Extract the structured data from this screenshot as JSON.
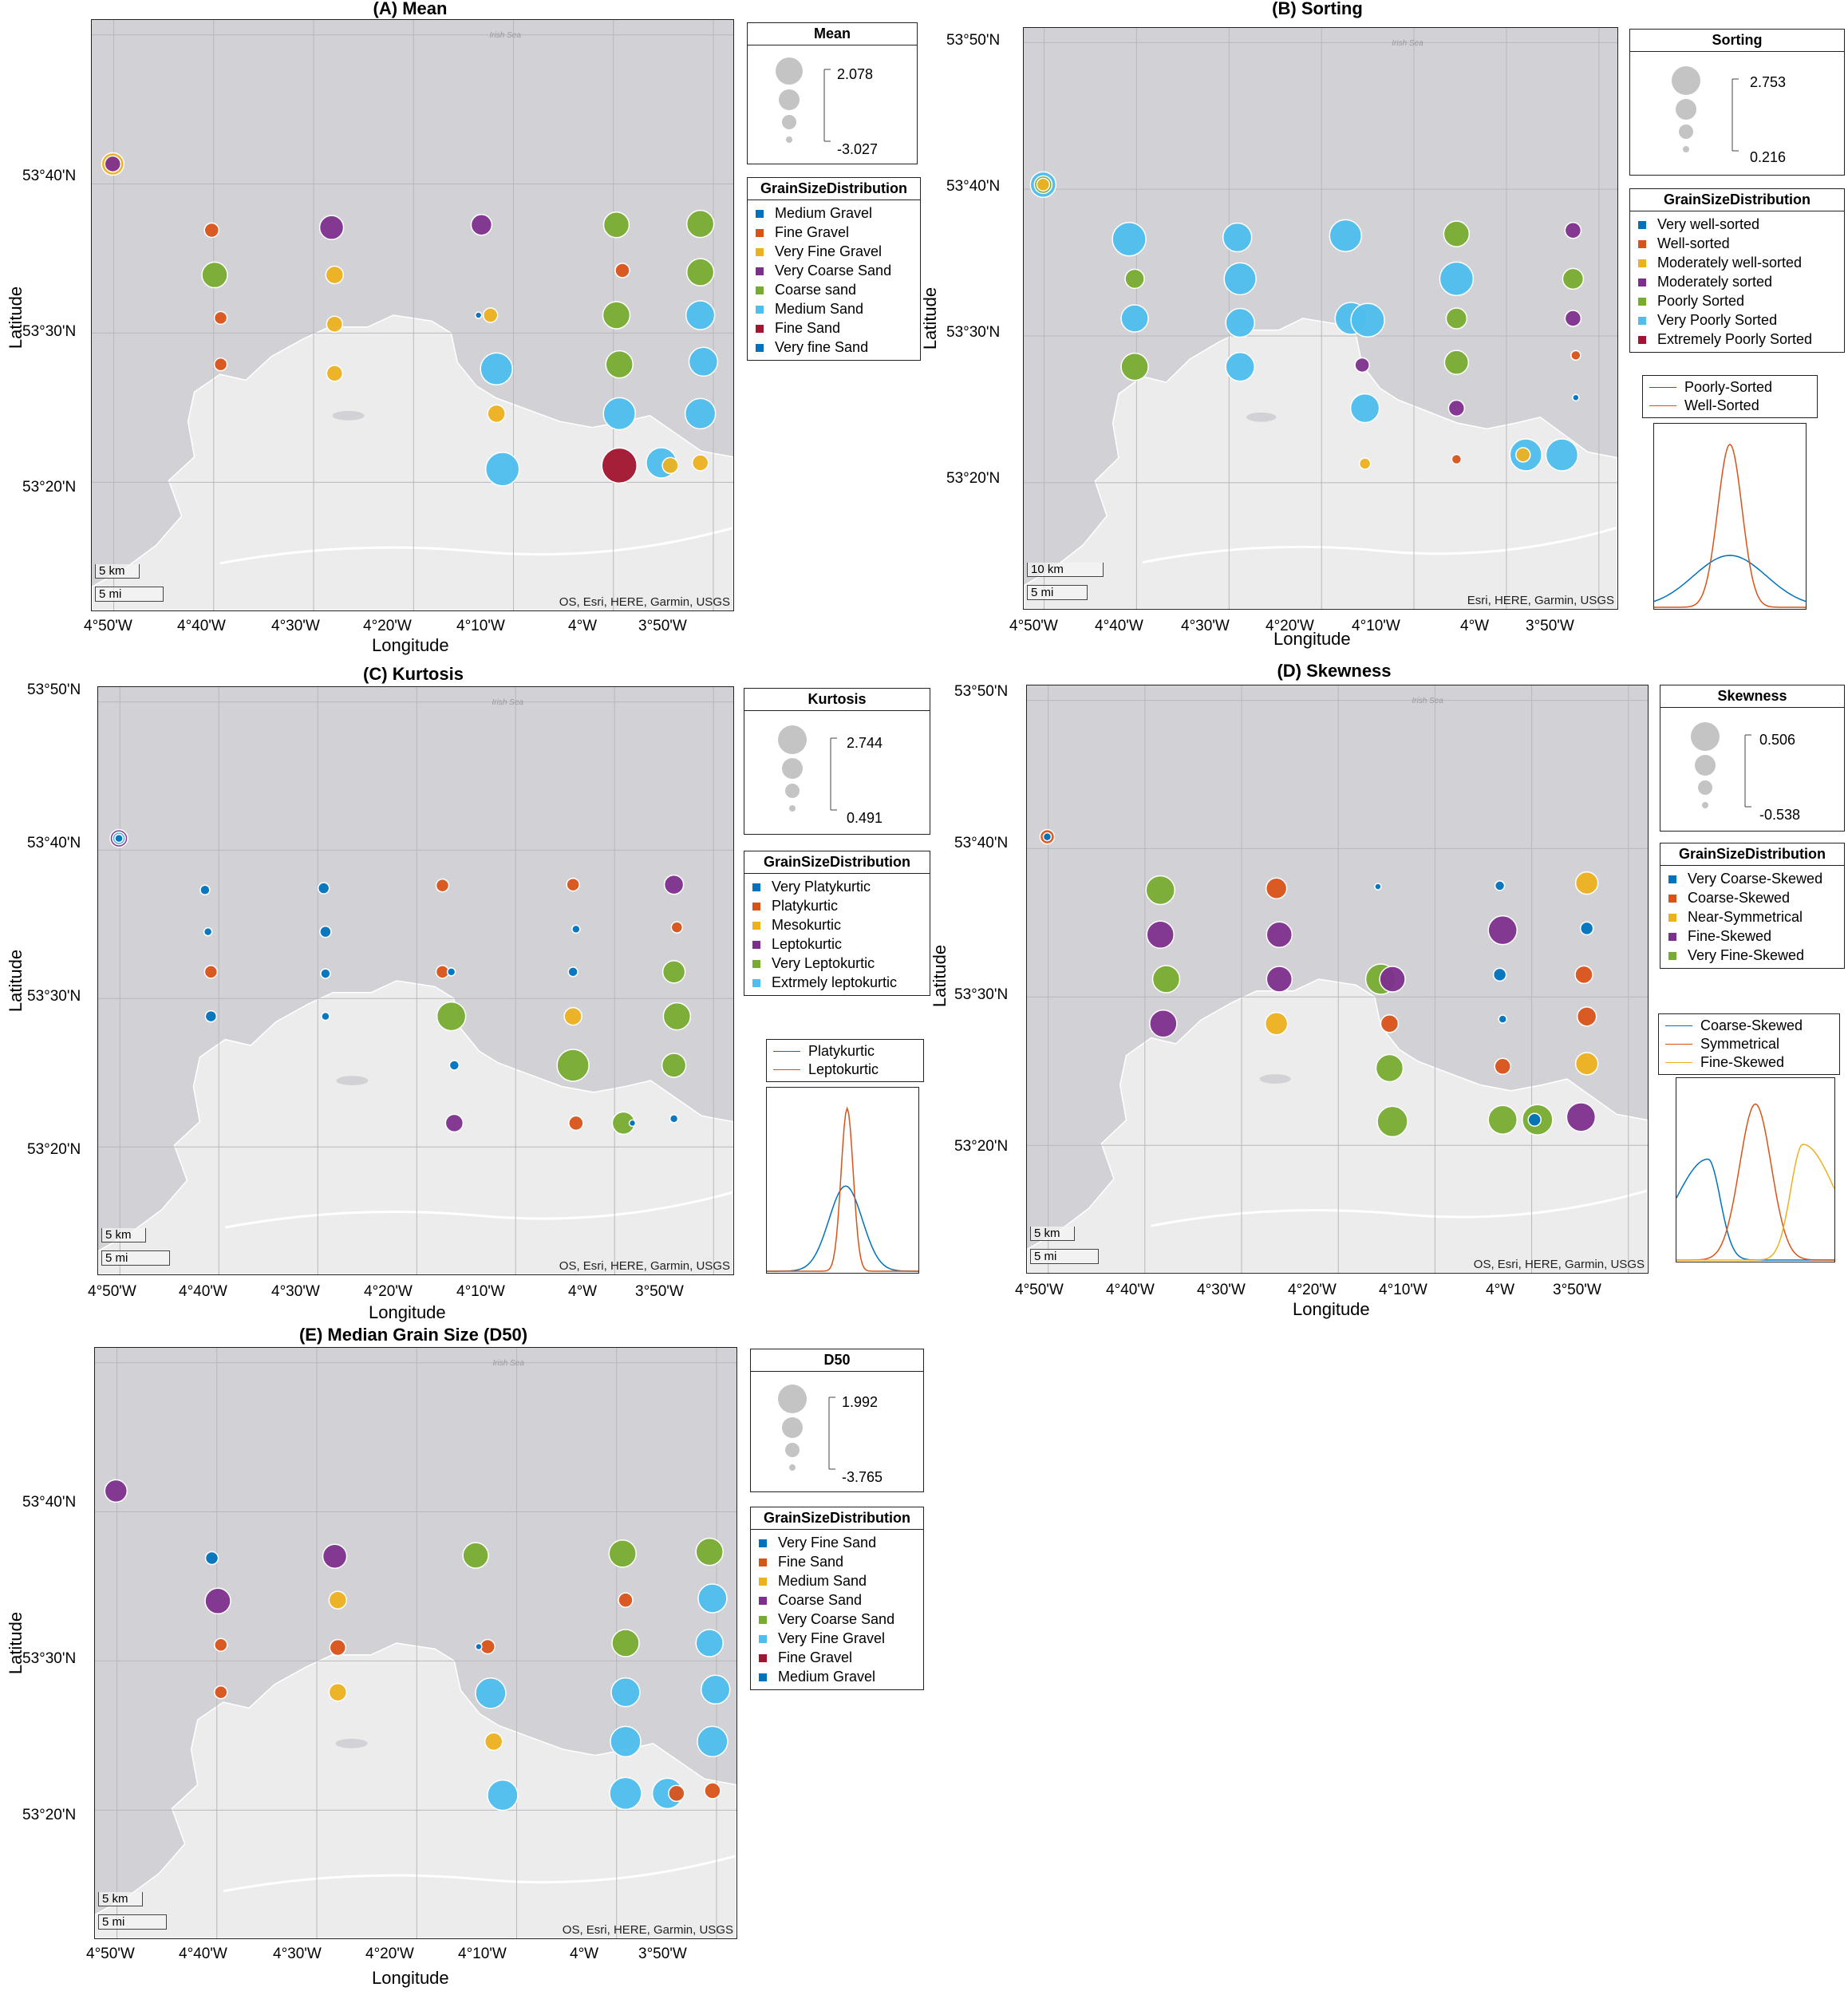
{
  "colors": {
    "blue": "#0072BD",
    "orange": "#D95319",
    "yellow": "#EDB120",
    "purple": "#7E2F8E",
    "green": "#77AC30",
    "cyan": "#4DBEEE",
    "red": "#A2142F",
    "sea": "#d2d2d6",
    "land": "#ececec"
  },
  "axes": {
    "xlabel": "Longitude",
    "ylabel": "Latitude",
    "lon_ticks": [
      "4°50'W",
      "4°40'W",
      "4°30'W",
      "4°20'W",
      "4°10'W",
      "4°W",
      "3°50'W"
    ],
    "lat_ticks": [
      "53°50'N",
      "53°40'N",
      "53°30'N",
      "53°20'N"
    ],
    "lon_values": [
      -4.8333,
      -4.6667,
      -4.5,
      -4.3333,
      -4.1667,
      -4.0,
      -3.8333
    ],
    "lat_values": [
      53.8333,
      53.6667,
      53.5,
      53.3333
    ],
    "sea_label": "Irish Sea"
  },
  "stations": {
    "rows": [
      [
        53.61,
        53.575,
        53.54,
        53.505,
        53.47,
        53.435,
        53.4,
        53.365,
        53.355
      ],
      []
    ],
    "note_lat_rows": [
      53.62,
      53.565,
      53.515,
      53.46,
      53.4,
      53.345
    ]
  },
  "panels": [
    {
      "id": "A",
      "title": "(A) Mean",
      "attribution": "OS, Esri, HERE, Garmin, USGS",
      "scale_labels": [
        "5 km",
        "5 mi"
      ],
      "size_legend": {
        "title": "Mean",
        "max": "2.078",
        "min": "-3.027"
      },
      "class_legend": {
        "title": "GrainSizeDistribution",
        "items": [
          {
            "label": "Medium Gravel",
            "color": "#0072BD"
          },
          {
            "label": "Fine Gravel",
            "color": "#D95319"
          },
          {
            "label": "Very Fine Gravel",
            "color": "#EDB120"
          },
          {
            "label": "Very Coarse Sand",
            "color": "#7E2F8E"
          },
          {
            "label": "Coarse sand",
            "color": "#77AC30"
          },
          {
            "label": "Medium Sand",
            "color": "#4DBEEE"
          },
          {
            "label": "Fine Sand",
            "color": "#A2142F"
          },
          {
            "label": "Very fine Sand",
            "color": "#0072BD"
          }
        ]
      }
    },
    {
      "id": "B",
      "title": "(B) Sorting",
      "attribution": "Esri, HERE, Garmin, USGS",
      "scale_labels": [
        "10 km",
        "5 mi"
      ],
      "size_legend": {
        "title": "Sorting",
        "max": "2.753",
        "min": "0.216"
      },
      "class_legend": {
        "title": "GrainSizeDistribution",
        "items": [
          {
            "label": "Very well-sorted",
            "color": "#0072BD"
          },
          {
            "label": "Well-sorted",
            "color": "#D95319"
          },
          {
            "label": "Moderately well-sorted",
            "color": "#EDB120"
          },
          {
            "label": "Moderately sorted",
            "color": "#7E2F8E"
          },
          {
            "label": "Poorly Sorted",
            "color": "#77AC30"
          },
          {
            "label": "Very Poorly Sorted",
            "color": "#4DBEEE"
          },
          {
            "label": "Extremely Poorly Sorted",
            "color": "#A2142F"
          }
        ]
      },
      "curve_legend": [
        {
          "label": "Poorly-Sorted",
          "color": "#0072BD"
        },
        {
          "label": "Well-Sorted",
          "color": "#D95319"
        }
      ]
    },
    {
      "id": "C",
      "title": "(C) Kurtosis",
      "attribution": "OS, Esri, HERE, Garmin, USGS",
      "scale_labels": [
        "5 km",
        "5 mi"
      ],
      "size_legend": {
        "title": "Kurtosis",
        "max": "2.744",
        "min": "0.491"
      },
      "class_legend": {
        "title": "GrainSizeDistribution",
        "items": [
          {
            "label": "Very Platykurtic",
            "color": "#0072BD"
          },
          {
            "label": "Platykurtic",
            "color": "#D95319"
          },
          {
            "label": "Mesokurtic",
            "color": "#EDB120"
          },
          {
            "label": "Leptokurtic",
            "color": "#7E2F8E"
          },
          {
            "label": "Very Leptokurtic",
            "color": "#77AC30"
          },
          {
            "label": "Extrmely leptokurtic",
            "color": "#4DBEEE"
          }
        ]
      },
      "curve_legend": [
        {
          "label": "Platykurtic",
          "color": "#0072BD"
        },
        {
          "label": "Leptokurtic",
          "color": "#D95319"
        }
      ]
    },
    {
      "id": "D",
      "title": "(D) Skewness",
      "attribution": "OS, Esri, HERE, Garmin, USGS",
      "scale_labels": [
        "5 km",
        "5 mi"
      ],
      "size_legend": {
        "title": "Skewness",
        "max": "0.506",
        "min": "-0.538"
      },
      "class_legend": {
        "title": "GrainSizeDistribution",
        "items": [
          {
            "label": "Very Coarse-Skewed",
            "color": "#0072BD"
          },
          {
            "label": "Coarse-Skewed",
            "color": "#D95319"
          },
          {
            "label": "Near-Symmetrical",
            "color": "#EDB120"
          },
          {
            "label": "Fine-Skewed",
            "color": "#7E2F8E"
          },
          {
            "label": "Very Fine-Skewed",
            "color": "#77AC30"
          }
        ]
      },
      "curve_legend": [
        {
          "label": "Coarse-Skewed",
          "color": "#0072BD"
        },
        {
          "label": "Symmetrical",
          "color": "#D95319"
        },
        {
          "label": "Fine-Skewed",
          "color": "#EDB120"
        }
      ]
    },
    {
      "id": "E",
      "title": "(E) Median Grain Size (D50)",
      "attribution": "OS, Esri, HERE, Garmin, USGS",
      "scale_labels": [
        "5 km",
        "5 mi"
      ],
      "size_legend": {
        "title": "D50",
        "max": "1.992",
        "min": "-3.765"
      },
      "class_legend": {
        "title": "GrainSizeDistribution",
        "items": [
          {
            "label": "Very Fine Sand",
            "color": "#0072BD"
          },
          {
            "label": "Fine Sand",
            "color": "#D95319"
          },
          {
            "label": "Medium Sand",
            "color": "#EDB120"
          },
          {
            "label": "Coarse Sand",
            "color": "#7E2F8E"
          },
          {
            "label": "Very Coarse Sand",
            "color": "#77AC30"
          },
          {
            "label": "Very Fine Gravel",
            "color": "#4DBEEE"
          },
          {
            "label": "Fine Gravel",
            "color": "#A2142F"
          },
          {
            "label": "Medium Gravel",
            "color": "#0072BD"
          }
        ]
      }
    }
  ],
  "points": {
    "A": [
      [
        -4.835,
        53.689,
        "yellow",
        14
      ],
      [
        -4.835,
        53.689,
        "purple",
        10
      ],
      [
        -4.67,
        53.615,
        "orange",
        9
      ],
      [
        -4.665,
        53.565,
        "green",
        16
      ],
      [
        -4.655,
        53.517,
        "orange",
        8
      ],
      [
        -4.655,
        53.465,
        "orange",
        8
      ],
      [
        -4.47,
        53.618,
        "purple",
        15
      ],
      [
        -4.465,
        53.565,
        "yellow",
        11
      ],
      [
        -4.465,
        53.51,
        "yellow",
        10
      ],
      [
        -4.465,
        53.455,
        "yellow",
        10
      ],
      [
        -4.22,
        53.621,
        "purple",
        13
      ],
      [
        -4.205,
        53.52,
        "yellow",
        9
      ],
      [
        -4.225,
        53.52,
        "blue",
        4
      ],
      [
        -4.195,
        53.46,
        "cyan",
        20
      ],
      [
        -4.195,
        53.41,
        "yellow",
        11
      ],
      [
        -4.185,
        53.348,
        "cyan",
        21
      ],
      [
        -3.995,
        53.621,
        "green",
        16
      ],
      [
        -3.985,
        53.57,
        "orange",
        9
      ],
      [
        -3.995,
        53.52,
        "green",
        17
      ],
      [
        -3.99,
        53.465,
        "green",
        17
      ],
      [
        -3.99,
        53.41,
        "cyan",
        20
      ],
      [
        -3.99,
        53.352,
        "red",
        22
      ],
      [
        -3.92,
        53.355,
        "cyan",
        19
      ],
      [
        -3.905,
        53.352,
        "yellow",
        10
      ],
      [
        -3.855,
        53.622,
        "green",
        17
      ],
      [
        -3.855,
        53.568,
        "green",
        17
      ],
      [
        -3.855,
        53.52,
        "cyan",
        18
      ],
      [
        -3.85,
        53.468,
        "cyan",
        18
      ],
      [
        -3.855,
        53.41,
        "cyan",
        19
      ],
      [
        -3.855,
        53.355,
        "yellow",
        10
      ]
    ],
    "B": [
      [
        -4.835,
        53.672,
        "cyan",
        16
      ],
      [
        -4.835,
        53.672,
        "green",
        11
      ],
      [
        -4.835,
        53.672,
        "yellow",
        8
      ],
      [
        -4.68,
        53.61,
        "cyan",
        21
      ],
      [
        -4.67,
        53.565,
        "green",
        12
      ],
      [
        -4.67,
        53.52,
        "cyan",
        17
      ],
      [
        -4.67,
        53.465,
        "green",
        17
      ],
      [
        -4.485,
        53.612,
        "cyan",
        18
      ],
      [
        -4.48,
        53.565,
        "cyan",
        20
      ],
      [
        -4.48,
        53.515,
        "cyan",
        18
      ],
      [
        -4.48,
        53.465,
        "cyan",
        18
      ],
      [
        -4.29,
        53.614,
        "cyan",
        20
      ],
      [
        -4.28,
        53.52,
        "cyan",
        20
      ],
      [
        -4.25,
        53.518,
        "cyan",
        21
      ],
      [
        -4.26,
        53.467,
        "purple",
        9
      ],
      [
        -4.255,
        53.418,
        "cyan",
        18
      ],
      [
        -4.255,
        53.355,
        "yellow",
        7
      ],
      [
        -4.09,
        53.616,
        "green",
        16
      ],
      [
        -4.09,
        53.565,
        "cyan",
        21
      ],
      [
        -4.09,
        53.52,
        "green",
        13
      ],
      [
        -4.09,
        53.47,
        "green",
        15
      ],
      [
        -4.09,
        53.418,
        "purple",
        10
      ],
      [
        -4.09,
        53.36,
        "orange",
        6
      ],
      [
        -3.965,
        53.365,
        "cyan",
        20
      ],
      [
        -3.97,
        53.365,
        "yellow",
        9
      ],
      [
        -3.88,
        53.62,
        "purple",
        10
      ],
      [
        -3.88,
        53.565,
        "green",
        13
      ],
      [
        -3.88,
        53.52,
        "purple",
        10
      ],
      [
        -3.875,
        53.478,
        "orange",
        6
      ],
      [
        -3.875,
        53.43,
        "blue",
        4
      ],
      [
        -3.9,
        53.365,
        "cyan",
        20
      ]
    ],
    "C": [
      [
        -4.835,
        53.68,
        "purple",
        11
      ],
      [
        -4.835,
        53.68,
        "cyan",
        8
      ],
      [
        -4.835,
        53.68,
        "blue",
        5
      ],
      [
        -4.69,
        53.622,
        "blue",
        6
      ],
      [
        -4.685,
        53.575,
        "blue",
        5
      ],
      [
        -4.68,
        53.53,
        "orange",
        8
      ],
      [
        -4.68,
        53.48,
        "blue",
        7
      ],
      [
        -4.49,
        53.624,
        "blue",
        7
      ],
      [
        -4.487,
        53.575,
        "blue",
        7
      ],
      [
        -4.487,
        53.528,
        "blue",
        6
      ],
      [
        -4.487,
        53.48,
        "blue",
        5
      ],
      [
        -4.29,
        53.627,
        "orange",
        8
      ],
      [
        -4.29,
        53.53,
        "orange",
        8
      ],
      [
        -4.275,
        53.53,
        "blue",
        5
      ],
      [
        -4.275,
        53.48,
        "green",
        18
      ],
      [
        -4.27,
        53.425,
        "blue",
        6
      ],
      [
        -4.27,
        53.36,
        "purple",
        11
      ],
      [
        -4.07,
        53.628,
        "orange",
        8
      ],
      [
        -4.065,
        53.578,
        "blue",
        5
      ],
      [
        -4.07,
        53.53,
        "blue",
        6
      ],
      [
        -4.07,
        53.48,
        "yellow",
        11
      ],
      [
        -4.07,
        53.425,
        "green",
        20
      ],
      [
        -4.065,
        53.36,
        "orange",
        9
      ],
      [
        -3.985,
        53.36,
        "green",
        14
      ],
      [
        -3.97,
        53.36,
        "blue",
        4
      ],
      [
        -3.9,
        53.628,
        "purple",
        12
      ],
      [
        -3.895,
        53.58,
        "orange",
        7
      ],
      [
        -3.9,
        53.53,
        "green",
        14
      ],
      [
        -3.895,
        53.48,
        "green",
        17
      ],
      [
        -3.9,
        53.425,
        "green",
        15
      ],
      [
        -3.9,
        53.365,
        "blue",
        5
      ]
    ],
    "D": [
      [
        -4.835,
        53.68,
        "orange",
        9
      ],
      [
        -4.835,
        53.68,
        "blue",
        5
      ],
      [
        -4.64,
        53.62,
        "green",
        18
      ],
      [
        -4.64,
        53.57,
        "purple",
        17
      ],
      [
        -4.63,
        53.52,
        "green",
        17
      ],
      [
        -4.635,
        53.47,
        "purple",
        17
      ],
      [
        -4.44,
        53.622,
        "orange",
        13
      ],
      [
        -4.435,
        53.57,
        "purple",
        16
      ],
      [
        -4.435,
        53.52,
        "purple",
        16
      ],
      [
        -4.44,
        53.47,
        "yellow",
        14
      ],
      [
        -4.265,
        53.624,
        "blue",
        4
      ],
      [
        -4.26,
        53.52,
        "green",
        19
      ],
      [
        -4.24,
        53.52,
        "purple",
        16
      ],
      [
        -4.245,
        53.47,
        "orange",
        11
      ],
      [
        -4.245,
        53.42,
        "green",
        17
      ],
      [
        -4.24,
        53.36,
        "green",
        19
      ],
      [
        -4.055,
        53.625,
        "blue",
        6
      ],
      [
        -4.05,
        53.575,
        "purple",
        18
      ],
      [
        -4.055,
        53.525,
        "blue",
        8
      ],
      [
        -4.05,
        53.475,
        "blue",
        5
      ],
      [
        -4.05,
        53.422,
        "orange",
        10
      ],
      [
        -4.05,
        53.362,
        "green",
        18
      ],
      [
        -3.99,
        53.362,
        "green",
        19
      ],
      [
        -3.995,
        53.362,
        "blue",
        8
      ],
      [
        -3.905,
        53.628,
        "yellow",
        14
      ],
      [
        -3.905,
        53.577,
        "blue",
        8
      ],
      [
        -3.91,
        53.525,
        "orange",
        11
      ],
      [
        -3.905,
        53.478,
        "orange",
        12
      ],
      [
        -3.905,
        53.425,
        "yellow",
        14
      ],
      [
        -3.915,
        53.365,
        "purple",
        18
      ]
    ],
    "E": [
      [
        -4.835,
        53.69,
        "purple",
        14
      ],
      [
        -4.675,
        53.615,
        "blue",
        8
      ],
      [
        -4.665,
        53.567,
        "purple",
        16
      ],
      [
        -4.66,
        53.518,
        "orange",
        8
      ],
      [
        -4.66,
        53.465,
        "orange",
        8
      ],
      [
        -4.47,
        53.617,
        "purple",
        15
      ],
      [
        -4.465,
        53.568,
        "yellow",
        11
      ],
      [
        -4.465,
        53.515,
        "orange",
        10
      ],
      [
        -4.465,
        53.465,
        "yellow",
        11
      ],
      [
        -4.235,
        53.618,
        "green",
        16
      ],
      [
        -4.215,
        53.516,
        "orange",
        9
      ],
      [
        -4.23,
        53.516,
        "blue",
        4
      ],
      [
        -4.21,
        53.464,
        "cyan",
        19
      ],
      [
        -4.205,
        53.41,
        "yellow",
        11
      ],
      [
        -4.19,
        53.35,
        "cyan",
        19
      ],
      [
        -3.99,
        53.62,
        "green",
        17
      ],
      [
        -3.985,
        53.568,
        "orange",
        9
      ],
      [
        -3.985,
        53.52,
        "green",
        17
      ],
      [
        -3.985,
        53.465,
        "cyan",
        18
      ],
      [
        -3.985,
        53.41,
        "cyan",
        19
      ],
      [
        -3.985,
        53.352,
        "cyan",
        20
      ],
      [
        -3.915,
        53.352,
        "cyan",
        19
      ],
      [
        -3.9,
        53.352,
        "orange",
        10
      ],
      [
        -3.845,
        53.622,
        "green",
        17
      ],
      [
        -3.84,
        53.57,
        "cyan",
        18
      ],
      [
        -3.845,
        53.52,
        "cyan",
        17
      ],
      [
        -3.835,
        53.468,
        "cyan",
        18
      ],
      [
        -3.84,
        53.41,
        "cyan",
        19
      ],
      [
        -3.84,
        53.355,
        "orange",
        10
      ]
    ]
  }
}
